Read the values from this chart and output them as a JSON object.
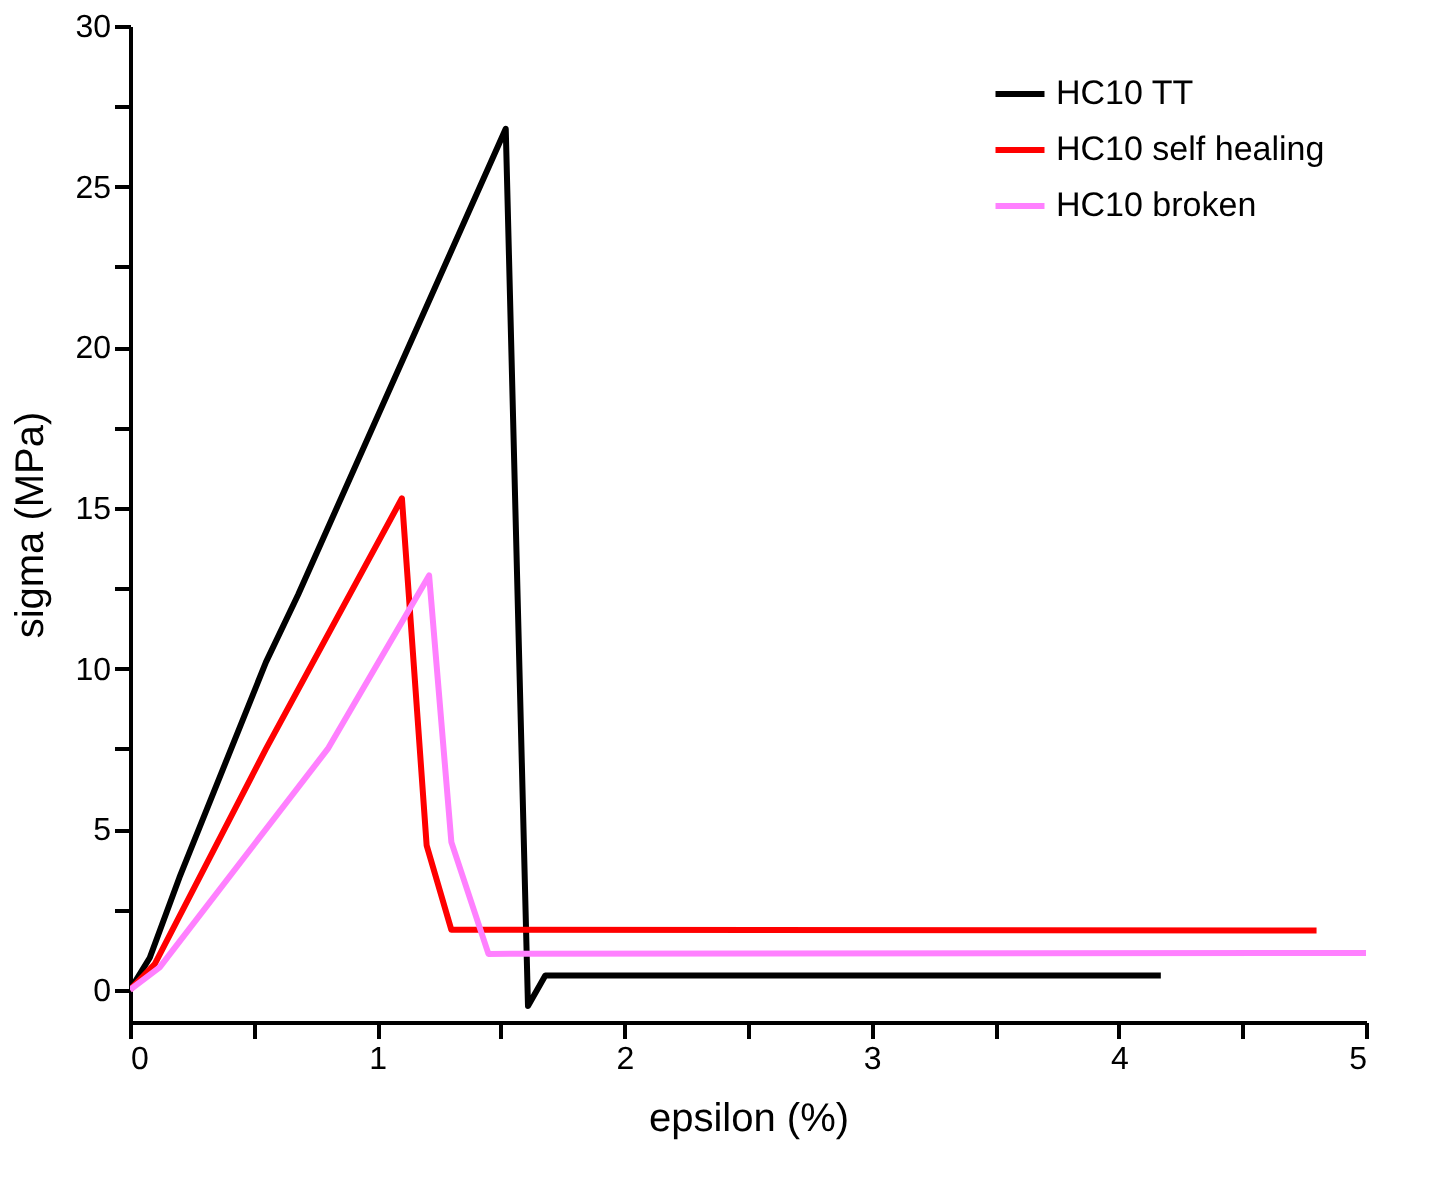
{
  "chart_data": {
    "type": "line",
    "xlabel": "epsilon (%)",
    "ylabel": "sigma (MPa)",
    "xlim": [
      0,
      5
    ],
    "ylim": [
      -1,
      30
    ],
    "xticks": [
      0,
      {
        "value": 0.5,
        "label": null
      },
      1,
      {
        "value": 1.5,
        "label": null
      },
      2,
      {
        "value": 2.5,
        "label": null
      },
      3,
      {
        "value": 3.5,
        "label": null
      },
      4,
      {
        "value": 4.5,
        "label": null
      },
      5
    ],
    "yticks": [
      0,
      {
        "value": 2.5,
        "label": null
      },
      5,
      {
        "value": 7.5,
        "label": null
      },
      10,
      {
        "value": 12.5,
        "label": null
      },
      15,
      {
        "value": 17.5,
        "label": null
      },
      20,
      {
        "value": 22.5,
        "label": null
      },
      25,
      {
        "value": 27.5,
        "label": null
      },
      30
    ],
    "grid": false,
    "legend": "top right",
    "marker": "none",
    "line_style": "solid",
    "series": [
      {
        "name": "HC10 TT",
        "color": "#000000",
        "x": [
          0,
          0.08,
          0.2,
          0.55,
          0.68,
          1.52,
          1.61,
          1.68,
          4.17
        ],
        "values": [
          0,
          1.0,
          3.5,
          10.2,
          12.3,
          26.8,
          -0.5,
          0.45,
          0.45
        ]
      },
      {
        "name": "HC10 self healing",
        "color": "#ff0000",
        "x": [
          0,
          0.1,
          0.55,
          1.1,
          1.2,
          1.3,
          4.8
        ],
        "values": [
          0,
          0.8,
          7.5,
          15.3,
          4.5,
          1.87,
          1.85
        ]
      },
      {
        "name": "HC10 broken",
        "color": "#ff80ff",
        "x": [
          0,
          0.12,
          0.5,
          0.8,
          1.21,
          1.3,
          1.45,
          5
        ],
        "values": [
          0,
          0.7,
          4.5,
          7.5,
          12.9,
          4.6,
          1.12,
          1.15
        ]
      }
    ]
  }
}
